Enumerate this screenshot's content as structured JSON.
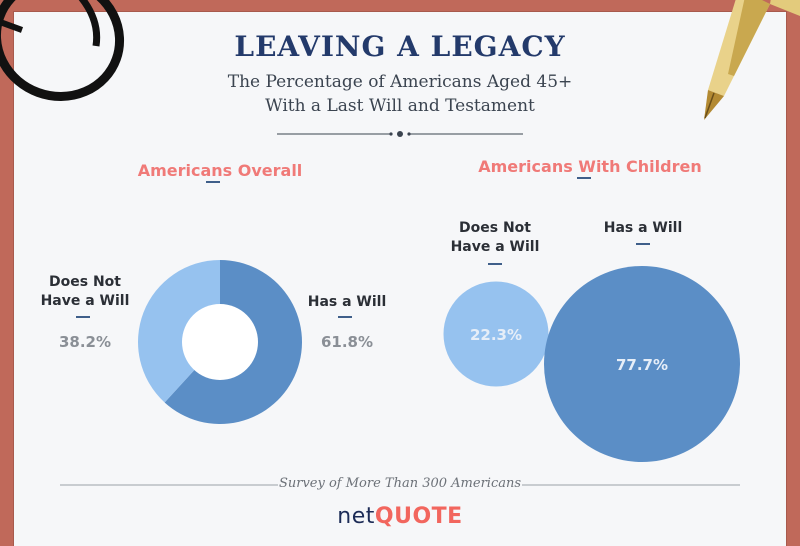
{
  "header": {
    "title": "LEAVING A LEGACY",
    "subtitle_line1": "The Percentage of Americans Aged 45+",
    "subtitle_line2": "With a Last Will and Testament"
  },
  "colors": {
    "has_will": "#5b8ec6",
    "no_will": "#96c2ef",
    "accent": "#f07a78",
    "title": "#233a6b"
  },
  "chart_data": [
    {
      "type": "pie",
      "title": "Americans Overall",
      "categories": [
        "Has a Will",
        "Does Not Have a Will"
      ],
      "values": [
        61.8,
        38.2
      ],
      "labels": [
        "61.8%",
        "38.2%"
      ],
      "style": "donut"
    },
    {
      "type": "bubble",
      "title": "Americans With Children",
      "categories": [
        "Does Not Have a Will",
        "Has a Will"
      ],
      "values": [
        22.3,
        77.7
      ],
      "labels": [
        "22.3%",
        "77.7%"
      ]
    }
  ],
  "overall": {
    "no_will_label_1": "Does Not",
    "no_will_label_2": "Have a Will",
    "has_will_label": "Has a Will"
  },
  "children": {
    "no_will_label_1": "Does Not",
    "no_will_label_2": "Have a Will",
    "has_will_label": "Has a Will"
  },
  "footer": {
    "survey_text": "Survey of More Than 300 Americans",
    "logo_net": "net",
    "logo_quote": "QUOTE"
  },
  "icons": [
    "glasses-icon",
    "fountain-pen-icon"
  ]
}
